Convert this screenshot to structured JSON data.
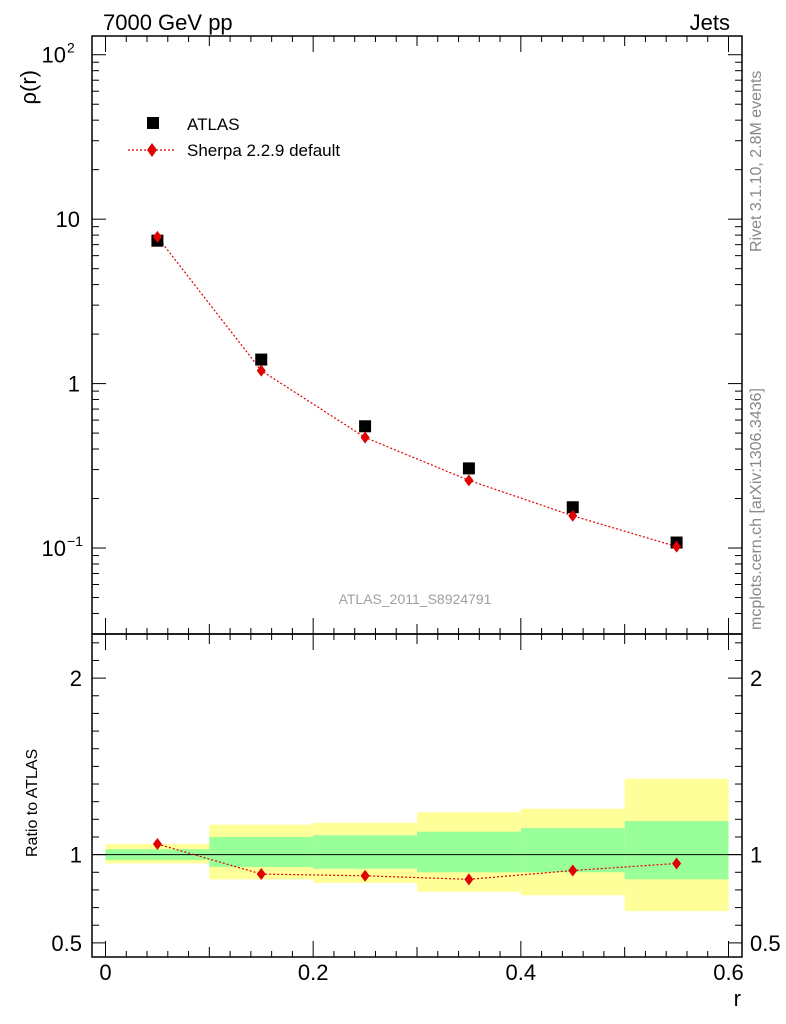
{
  "header": {
    "left": "7000 GeV pp",
    "right": "Jets"
  },
  "side_text": {
    "top": "Rivet 3.1.10,  2.8M events",
    "bottom": "mcplots.cern.ch [arXiv:1306.3436]"
  },
  "analysis_id": "ATLAS_2011_S8924791",
  "colors": {
    "data": "#000000",
    "mc": "#e00000",
    "band_inner": "#99ff99",
    "band_outer": "#ffff99",
    "ratio_line": "#000000"
  },
  "chart_data": [
    {
      "type": "scatter",
      "panel": "main",
      "ylabel": "ρ(r)",
      "yscale": "log",
      "ylim": [
        0.03,
        130
      ],
      "xlim": [
        -0.013,
        0.613
      ],
      "yticks": [
        {
          "value": 0.1,
          "base": "10",
          "exp": "−1"
        },
        {
          "value": 1,
          "label": "1"
        },
        {
          "value": 10,
          "label": "10"
        },
        {
          "value": 100,
          "base": "10",
          "exp": "2"
        }
      ],
      "legend_position": "top-left",
      "series": [
        {
          "name": "ATLAS",
          "marker": "square",
          "x": [
            0.05,
            0.15,
            0.25,
            0.35,
            0.45,
            0.55
          ],
          "values": [
            7.4,
            1.4,
            0.55,
            0.305,
            0.177,
            0.108
          ]
        },
        {
          "name": "Sherpa 2.2.9 default",
          "marker": "diamond",
          "line": "dotted",
          "x": [
            0.05,
            0.15,
            0.25,
            0.35,
            0.45,
            0.55
          ],
          "values": [
            7.8,
            1.2,
            0.47,
            0.258,
            0.157,
            0.102
          ]
        }
      ]
    },
    {
      "type": "line",
      "panel": "ratio",
      "ylabel": "Ratio to ATLAS",
      "xlabel": "r",
      "ylim": [
        0.42,
        2.25
      ],
      "xlim": [
        -0.013,
        0.613
      ],
      "xticks": [
        0,
        0.2,
        0.4,
        0.6
      ],
      "xticklabels": [
        "0",
        "0.2",
        "0.4",
        "0.6"
      ],
      "yticks": [
        0.5,
        1,
        2
      ],
      "yticklabels": [
        "0.5",
        "1",
        "2"
      ],
      "bands": [
        {
          "x0": 0.0,
          "x1": 0.1,
          "inner": [
            0.97,
            1.03
          ],
          "outer": [
            0.95,
            1.06
          ]
        },
        {
          "x0": 0.1,
          "x1": 0.2,
          "inner": [
            0.93,
            1.1
          ],
          "outer": [
            0.86,
            1.17
          ]
        },
        {
          "x0": 0.2,
          "x1": 0.3,
          "inner": [
            0.92,
            1.11
          ],
          "outer": [
            0.84,
            1.18
          ]
        },
        {
          "x0": 0.3,
          "x1": 0.4,
          "inner": [
            0.9,
            1.13
          ],
          "outer": [
            0.79,
            1.24
          ]
        },
        {
          "x0": 0.4,
          "x1": 0.5,
          "inner": [
            0.9,
            1.15
          ],
          "outer": [
            0.77,
            1.26
          ]
        },
        {
          "x0": 0.5,
          "x1": 0.6,
          "inner": [
            0.86,
            1.19
          ],
          "outer": [
            0.68,
            1.43
          ]
        }
      ],
      "series": [
        {
          "name": "Sherpa 2.2.9 default",
          "marker": "diamond",
          "line": "dotted",
          "x": [
            0.05,
            0.15,
            0.25,
            0.35,
            0.45,
            0.55
          ],
          "values": [
            1.06,
            0.89,
            0.88,
            0.86,
            0.91,
            0.95
          ]
        }
      ]
    }
  ]
}
